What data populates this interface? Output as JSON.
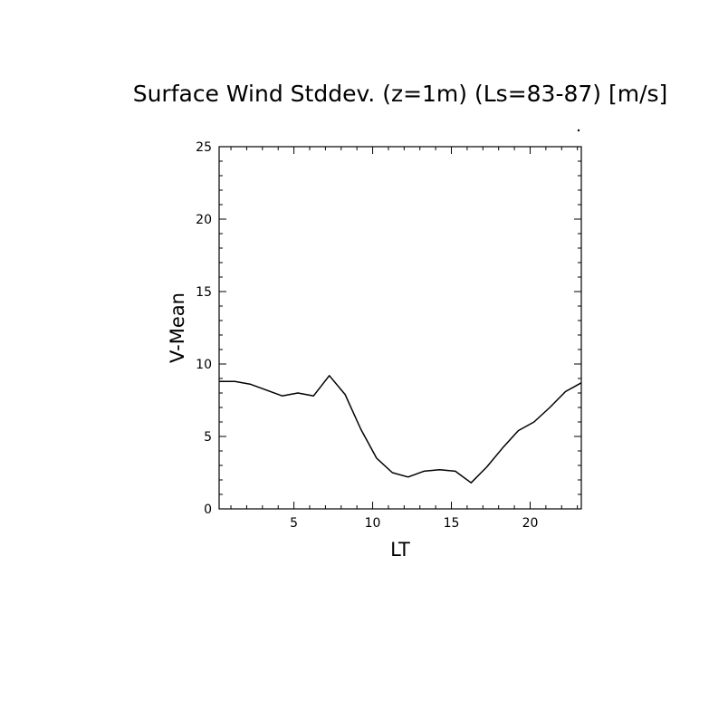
{
  "chart_data": {
    "type": "line",
    "title": "Surface Wind Stddev. (z=1m) (Ls=83-87) [m/s]",
    "xlabel": "LT",
    "ylabel": "V-Mean",
    "xlim": [
      0.25,
      23.25
    ],
    "ylim": [
      0,
      25
    ],
    "x_ticks": [
      5,
      10,
      15,
      20
    ],
    "x_tick_labels": [
      "5",
      "10",
      "15",
      "20"
    ],
    "y_ticks": [
      0,
      5,
      10,
      15,
      20,
      25
    ],
    "y_tick_labels": [
      "0",
      "5",
      "10",
      "15",
      "20",
      "25"
    ],
    "grid": false,
    "series": [
      {
        "x": [
          0.25,
          1.25,
          2.25,
          3.25,
          4.25,
          5.25,
          6.25,
          7.25,
          8.25,
          9.25,
          10.25,
          11.25,
          12.25,
          13.25,
          14.25,
          15.25,
          16.25,
          17.25,
          18.25,
          19.25,
          20.25,
          21.25,
          22.25,
          23.25
        ],
        "values": [
          8.8,
          8.8,
          8.6,
          8.2,
          7.8,
          8.0,
          7.8,
          9.2,
          7.9,
          5.5,
          3.5,
          2.5,
          2.2,
          2.6,
          2.7,
          2.6,
          1.8,
          2.9,
          4.2,
          5.4,
          6.0,
          7.0,
          8.1,
          8.7
        ]
      }
    ]
  }
}
